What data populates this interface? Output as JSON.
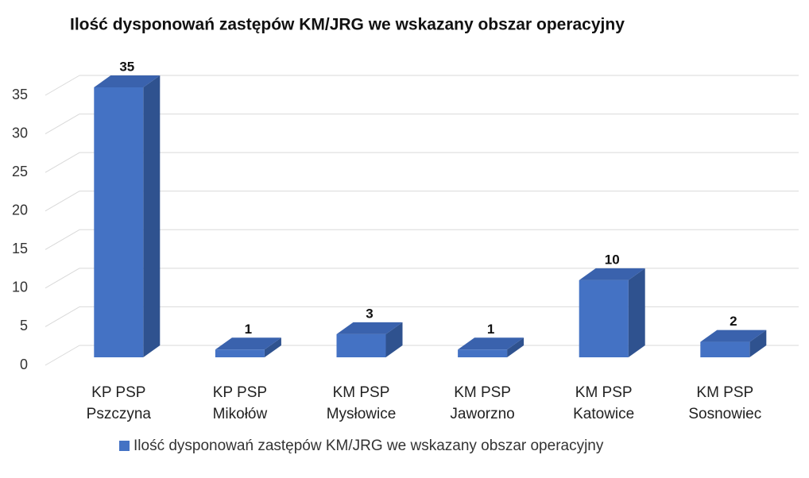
{
  "chart_data": {
    "type": "bar3d",
    "title": "Ilość dysponowań zastępów KM/JRG we wskazany obszar operacyjny",
    "categories": [
      "KP PSP Pszczyna",
      "KP PSP Mikołów",
      "KM PSP Mysłowice",
      "KM PSP Jaworzno",
      "KM PSP Katowice",
      "KM PSP Sosnowiec"
    ],
    "series": [
      {
        "name": "Ilość dysponowań zastępów KM/JRG we wskazany obszar operacyjny",
        "color": "#4472c4",
        "values": [
          35,
          1,
          3,
          1,
          10,
          2
        ]
      }
    ],
    "ylim": [
      0,
      35
    ],
    "yticks": [
      0,
      5,
      10,
      15,
      20,
      25,
      30,
      35
    ],
    "grid": true,
    "legend": "bottom"
  }
}
